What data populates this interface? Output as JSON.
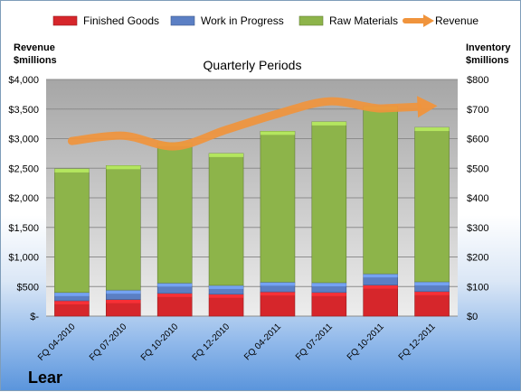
{
  "chart_data": {
    "type": "bar",
    "subtitle": "Quarterly Periods",
    "company": "Lear",
    "left_axis_title": [
      "Revenue",
      "$millions"
    ],
    "right_axis_title": [
      "Inventory",
      "$millions"
    ],
    "categories": [
      "FQ 04-2010",
      "FQ 07-2010",
      "FQ 10-2010",
      "FQ 12-2010",
      "FQ 04-2011",
      "FQ 07-2011",
      "FQ 10-2011",
      "FQ 12-2011"
    ],
    "left_ticks": [
      "$-",
      "$500",
      "$1,000",
      "$1,500",
      "$2,000",
      "$2,500",
      "$3,000",
      "$3,500",
      "$4,000"
    ],
    "right_ticks": [
      "$0",
      "$100",
      "$200",
      "$300",
      "$400",
      "$500",
      "$600",
      "$700",
      "$800"
    ],
    "left_ylim": [
      0,
      4000
    ],
    "right_ylim": [
      0,
      800
    ],
    "legend_position": "top",
    "series": [
      {
        "name": "Finished Goods",
        "axis": "right",
        "kind": "stacked-bar",
        "color": "#d6262b",
        "values": [
          52,
          56,
          77,
          74,
          82,
          80,
          105,
          83
        ]
      },
      {
        "name": "Work in Progress",
        "axis": "right",
        "kind": "stacked-bar",
        "color": "#5b7fc4",
        "values": [
          28,
          32,
          35,
          30,
          33,
          33,
          38,
          33
        ]
      },
      {
        "name": "Raw Materials",
        "axis": "right",
        "kind": "stacked-bar",
        "color": "#8db44a",
        "values": [
          418,
          421,
          474,
          446,
          510,
          544,
          567,
          522
        ]
      },
      {
        "name": "Revenue",
        "axis": "left",
        "kind": "line",
        "color": "#f0943c",
        "values": [
          2960,
          3050,
          2870,
          3150,
          3420,
          3630,
          3510,
          3550
        ]
      }
    ]
  }
}
